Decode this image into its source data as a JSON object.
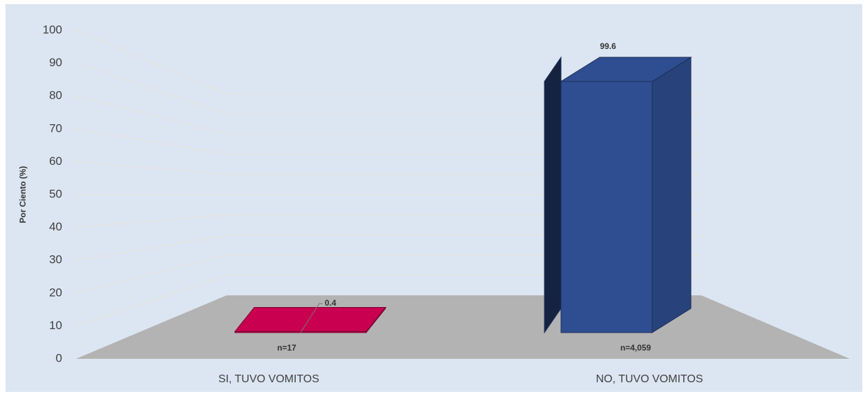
{
  "chart_data": {
    "type": "bar3d",
    "y_axis_label": "Por Ciento (%)",
    "categories": [
      "SI, TUVO VOMITOS",
      "NO, TUVO VOMITOS"
    ],
    "values": [
      0.4,
      99.6
    ],
    "colors": [
      "#c8004f",
      "#2f4e91"
    ],
    "annotations": [
      "n=17",
      "n=4,059"
    ],
    "ylim": [
      0,
      100
    ],
    "yticks": [
      0,
      10,
      20,
      30,
      40,
      50,
      60,
      70,
      80,
      90,
      100
    ],
    "grid": true
  }
}
